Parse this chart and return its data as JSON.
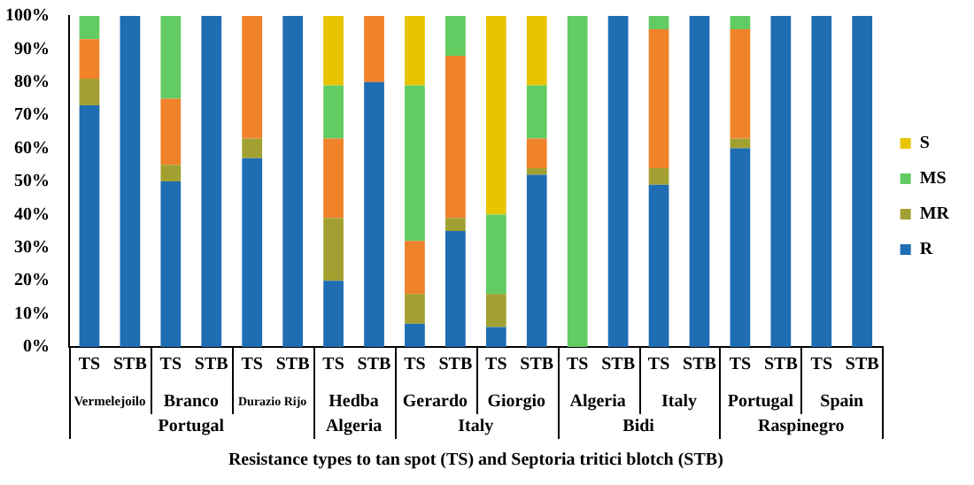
{
  "chart_data": {
    "type": "bar",
    "stacked": true,
    "xlabel": "Resistance types to tan spot (TS) and Septoria tritici blotch (STB)",
    "categories": [
      "TS",
      "STB",
      "TS",
      "STB",
      "TS",
      "STB",
      "TS",
      "STB",
      "TS",
      "STB",
      "TS",
      "STB",
      "TS",
      "STB",
      "TS",
      "STB",
      "TS",
      "STB",
      "TS",
      "STB"
    ],
    "series": [
      {
        "name": "R",
        "color": "#1f6db3",
        "values": [
          73,
          100,
          50,
          100,
          57,
          100,
          20,
          80,
          7,
          35,
          6,
          52,
          0,
          100,
          49,
          100,
          60,
          100,
          100,
          100
        ]
      },
      {
        "name": "MR",
        "color": "#a3a032",
        "values": [
          8,
          0,
          5,
          0,
          6,
          0,
          19,
          0,
          9,
          4,
          10,
          2,
          0,
          0,
          5,
          0,
          3,
          0,
          0,
          0
        ]
      },
      {
        "color": "#f0822a",
        "values": [
          12,
          0,
          20,
          0,
          37,
          0,
          24,
          20,
          16,
          49,
          0,
          9,
          0,
          0,
          42,
          0,
          33,
          0,
          0,
          0
        ]
      },
      {
        "name": "MS",
        "color": "#62cc62",
        "values": [
          7,
          0,
          25,
          0,
          0,
          0,
          16,
          0,
          47,
          12,
          24,
          16,
          100,
          0,
          4,
          0,
          4,
          0,
          0,
          0
        ]
      },
      {
        "name": "S",
        "color": "#e8c400",
        "values": [
          0,
          0,
          0,
          0,
          0,
          0,
          21,
          0,
          21,
          0,
          60,
          21,
          0,
          0,
          0,
          0,
          0,
          0,
          0,
          0
        ]
      }
    ],
    "ylim": [
      0,
      100
    ],
    "yticks": [
      {
        "value": 0,
        "label": "0%"
      },
      {
        "value": 10,
        "label": "10%"
      },
      {
        "value": 20,
        "label": "20%"
      },
      {
        "value": 30,
        "label": "30%"
      },
      {
        "value": 40,
        "label": "40%"
      },
      {
        "value": 50,
        "label": "50%"
      },
      {
        "value": 60,
        "label": "60%"
      },
      {
        "value": 70,
        "label": "70%"
      },
      {
        "value": 80,
        "label": "80%"
      },
      {
        "value": 90,
        "label": "90%"
      },
      {
        "value": 100,
        "label": "100%"
      }
    ],
    "grid": false,
    "legend": "right",
    "annotations": [
      "Vermelejoilo",
      "Branco",
      "Durazio Rijo",
      "Hedba",
      "Gerardo",
      "Giorgio",
      "Algeria",
      "Italy",
      "Portugal",
      "Spain",
      "Portugal",
      "Algeria",
      "Italy",
      "Bidi",
      "Raspinegro"
    ]
  }
}
